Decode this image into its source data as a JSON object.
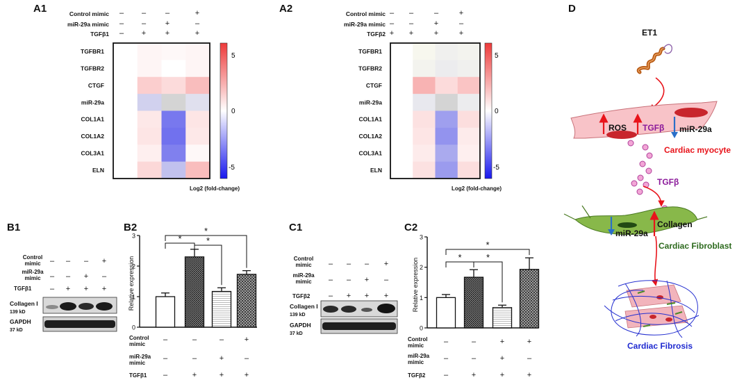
{
  "panels": {
    "A1": "A1",
    "A2": "A2",
    "B1": "B1",
    "B2": "B2",
    "C1": "C1",
    "C2": "C2",
    "D": "D"
  },
  "heatmap_labels": {
    "control_mimic": "Control mimic",
    "mir29a_mimic": "miR-29a mimic",
    "tgfb1": "TGFβ1",
    "tgfb2": "TGFβ2",
    "legend_caption": "Log2 (fold-change)",
    "legend_max": "5",
    "legend_mid": "0",
    "legend_min": "-5"
  },
  "western": {
    "control_line1": "Control",
    "control_line2": "mimic",
    "mir_line1": "miR-29a",
    "mir_line2": "mimic",
    "tgfb1": "TGFβ1",
    "tgfb2": "TGFβ2",
    "collagen_name": "Collagen I",
    "collagen_kd": "139 kD",
    "gapdh_name": "GAPDH",
    "gapdh_kd": "37 kD"
  },
  "bar_ylabel": "Relative expression",
  "signs": {
    "plus": "+",
    "minus": "–"
  },
  "schematic": {
    "et1": "ET1",
    "ros": "ROS",
    "tgfb_inner": "TGFβ",
    "mir29a_myocyte": "miR-29a",
    "cardiac_myocyte": "Cardiac myocyte",
    "tgfb_released": "TGFβ",
    "collagen": "Collagen",
    "mir29a_fibroblast": "miR-29a",
    "cardiac_fibroblast": "Cardiac Fibroblast",
    "cardiac_fibrosis": "Cardiac Fibrosis",
    "color_red": "#e8141b",
    "color_purple": "#8b1a9a",
    "color_green": "#2d6a1e",
    "color_blue": "#1f2ad0",
    "color_arrow_blue": "#2a6fc8"
  },
  "chart_data": [
    {
      "id": "A1",
      "type": "heatmap",
      "rows": [
        "TGFBR1",
        "TGFBR2",
        "CTGF",
        "miR-29a",
        "COL1A1",
        "COL1A2",
        "COL3A1",
        "ELN"
      ],
      "conditions": [
        {
          "control_mimic": "–",
          "mir29a_mimic": "–",
          "tgfb": "–"
        },
        {
          "control_mimic": "–",
          "mir29a_mimic": "–",
          "tgfb": "+"
        },
        {
          "control_mimic": "–",
          "mir29a_mimic": "+",
          "tgfb": "+"
        },
        {
          "control_mimic": "+",
          "mir29a_mimic": "–",
          "tgfb": "+"
        }
      ],
      "values": [
        [
          0,
          0.3,
          0.2,
          0.3
        ],
        [
          0,
          0.3,
          0.0,
          0.3
        ],
        [
          0,
          1.5,
          1.1,
          2.0
        ],
        [
          0,
          -1.2,
          null,
          -0.8
        ],
        [
          0,
          0.7,
          -3.5,
          0.8
        ],
        [
          0,
          0.8,
          -3.7,
          0.7
        ],
        [
          0,
          0.5,
          -3.3,
          0.2
        ],
        [
          0,
          1.2,
          -1.6,
          2.0
        ]
      ],
      "colorbar": {
        "min": -6,
        "max": 6,
        "ticks": [
          5,
          0,
          -5
        ]
      },
      "legend": "Log2 (fold-change)"
    },
    {
      "id": "A2",
      "type": "heatmap",
      "rows": [
        "TGFBR1",
        "TGFBR2",
        "CTGF",
        "miR-29a",
        "COL1A1",
        "COL1A2",
        "COL3A1",
        "ELN"
      ],
      "conditions": [
        {
          "control_mimic": "–",
          "mir29a_mimic": "–",
          "tgfb": "+"
        },
        {
          "control_mimic": "–",
          "mir29a_mimic": "–",
          "tgfb": "+"
        },
        {
          "control_mimic": "–",
          "mir29a_mimic": "+",
          "tgfb": "+"
        },
        {
          "control_mimic": "+",
          "mir29a_mimic": "–",
          "tgfb": "+"
        }
      ],
      "values": [
        [
          0,
          -0.2,
          -0.4,
          -0.3
        ],
        [
          0,
          -0.3,
          -0.5,
          -0.4
        ],
        [
          0,
          2.3,
          1.1,
          1.8
        ],
        [
          0,
          -0.6,
          null,
          -0.5
        ],
        [
          0,
          0.9,
          -2.5,
          1.0
        ],
        [
          0,
          0.8,
          -2.8,
          0.6
        ],
        [
          0,
          0.6,
          -2.2,
          0.5
        ],
        [
          0,
          0.9,
          -2.6,
          1.0
        ]
      ],
      "colorbar": {
        "min": -6,
        "max": 6,
        "ticks": [
          5,
          0,
          -5
        ]
      },
      "legend": "Log2 (fold-change)"
    },
    {
      "id": "B2",
      "type": "bar",
      "ylabel": "Relative expression",
      "ylim": [
        0,
        3
      ],
      "yticks": [
        0,
        1,
        2,
        3
      ],
      "values": [
        1.0,
        2.3,
        1.17,
        1.73
      ],
      "errors": [
        0.12,
        0.25,
        0.12,
        0.12
      ],
      "patterns": [
        "white",
        "dark",
        "light",
        "medium"
      ],
      "groups": {
        "control_mimic": [
          "–",
          "–",
          "–",
          "+"
        ],
        "mir29a_mimic": [
          "–",
          "–",
          "+",
          "–"
        ],
        "tgfb": [
          "–",
          "+",
          "+",
          "+"
        ]
      },
      "group_names": {
        "control_mimic": "Control mimic",
        "mir29a_mimic": "miR-29a mimic",
        "tgfb": "TGFβ1"
      },
      "significance": [
        [
          0,
          1,
          "*"
        ],
        [
          1,
          2,
          "*"
        ],
        [
          0,
          3,
          "*"
        ]
      ]
    },
    {
      "id": "C2",
      "type": "bar",
      "ylabel": "Relative expression",
      "ylim": [
        0,
        3
      ],
      "yticks": [
        0,
        1,
        2,
        3
      ],
      "values": [
        1.0,
        1.67,
        0.67,
        1.93
      ],
      "errors": [
        0.1,
        0.25,
        0.08,
        0.38
      ],
      "patterns": [
        "white",
        "dark",
        "light",
        "medium"
      ],
      "groups": {
        "control_mimic": [
          "–",
          "–",
          "+",
          "+"
        ],
        "mir29a_mimic": [
          "–",
          "–",
          "+",
          "–"
        ],
        "tgfb": [
          "–",
          "+",
          "+",
          "+"
        ]
      },
      "group_names": {
        "control_mimic": "Control mimic",
        "mir29a_mimic": "miR-29a mimic",
        "tgfb": "TGFβ2"
      },
      "significance": [
        [
          0,
          1,
          "*"
        ],
        [
          1,
          2,
          "*"
        ],
        [
          0,
          3,
          "*"
        ]
      ]
    }
  ]
}
